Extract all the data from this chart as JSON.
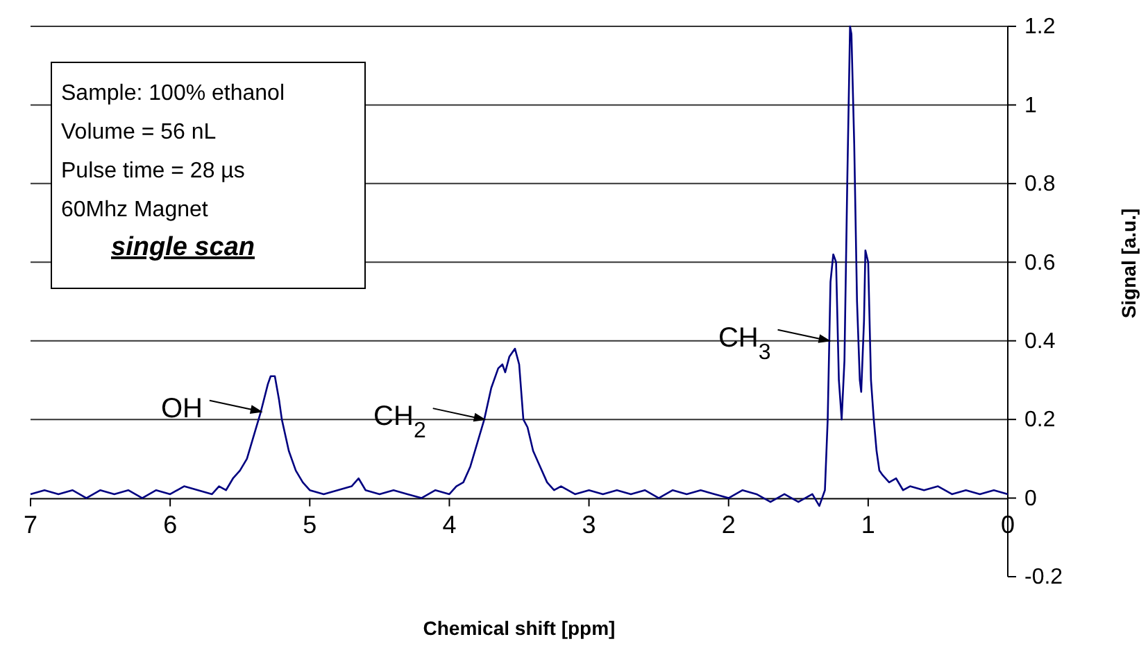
{
  "chart_data": {
    "type": "line",
    "xlabel": "Chemical shift [ppm]",
    "y2label": "Signal [a.u.]",
    "xlim": [
      7,
      0
    ],
    "xticks": [
      7,
      6,
      5,
      4,
      3,
      2,
      1,
      0
    ],
    "ylim": [
      -0.2,
      1.2
    ],
    "yticks": [
      -0.2,
      0,
      0.2,
      0.4,
      0.6,
      0.8,
      1,
      1.2
    ],
    "grid": "y",
    "marker": "none",
    "line_style": "solid",
    "series": [
      {
        "color": "#000080",
        "x": [
          7.0,
          6.9,
          6.8,
          6.7,
          6.6,
          6.5,
          6.4,
          6.3,
          6.2,
          6.1,
          6.0,
          5.9,
          5.8,
          5.7,
          5.65,
          5.6,
          5.55,
          5.5,
          5.45,
          5.4,
          5.35,
          5.3,
          5.28,
          5.25,
          5.22,
          5.2,
          5.15,
          5.1,
          5.05,
          5.0,
          4.9,
          4.8,
          4.7,
          4.65,
          4.6,
          4.5,
          4.4,
          4.3,
          4.2,
          4.1,
          4.0,
          3.95,
          3.9,
          3.85,
          3.8,
          3.75,
          3.7,
          3.65,
          3.62,
          3.6,
          3.57,
          3.53,
          3.5,
          3.47,
          3.44,
          3.4,
          3.35,
          3.3,
          3.25,
          3.2,
          3.1,
          3.0,
          2.9,
          2.8,
          2.7,
          2.6,
          2.5,
          2.4,
          2.3,
          2.2,
          2.1,
          2.0,
          1.9,
          1.8,
          1.7,
          1.6,
          1.5,
          1.4,
          1.35,
          1.31,
          1.29,
          1.27,
          1.25,
          1.23,
          1.21,
          1.19,
          1.17,
          1.15,
          1.13,
          1.12,
          1.1,
          1.08,
          1.06,
          1.05,
          1.03,
          1.02,
          1.0,
          0.98,
          0.96,
          0.94,
          0.92,
          0.9,
          0.85,
          0.8,
          0.75,
          0.7,
          0.6,
          0.5,
          0.4,
          0.3,
          0.2,
          0.1,
          0.0
        ],
        "values": [
          0.01,
          0.02,
          0.01,
          0.02,
          0.0,
          0.02,
          0.01,
          0.02,
          0.0,
          0.02,
          0.01,
          0.03,
          0.02,
          0.01,
          0.03,
          0.02,
          0.05,
          0.07,
          0.1,
          0.16,
          0.22,
          0.29,
          0.31,
          0.31,
          0.25,
          0.2,
          0.12,
          0.07,
          0.04,
          0.02,
          0.01,
          0.02,
          0.03,
          0.05,
          0.02,
          0.01,
          0.02,
          0.01,
          0.0,
          0.02,
          0.01,
          0.03,
          0.04,
          0.08,
          0.14,
          0.2,
          0.28,
          0.33,
          0.34,
          0.32,
          0.36,
          0.38,
          0.34,
          0.2,
          0.18,
          0.12,
          0.08,
          0.04,
          0.02,
          0.03,
          0.01,
          0.02,
          0.01,
          0.02,
          0.01,
          0.02,
          0.0,
          0.02,
          0.01,
          0.02,
          0.01,
          0.0,
          0.02,
          0.01,
          -0.01,
          0.01,
          -0.01,
          0.01,
          -0.02,
          0.02,
          0.2,
          0.55,
          0.62,
          0.6,
          0.3,
          0.2,
          0.35,
          0.8,
          1.2,
          1.18,
          0.9,
          0.5,
          0.3,
          0.27,
          0.45,
          0.63,
          0.6,
          0.3,
          0.2,
          0.12,
          0.07,
          0.06,
          0.04,
          0.05,
          0.02,
          0.03,
          0.02,
          0.03,
          0.01,
          0.02,
          0.01,
          0.02,
          0.01
        ]
      }
    ],
    "annotations": [
      {
        "text": "OH",
        "x": 5.35,
        "y": 0.22
      },
      {
        "text": "CH$_{2}$",
        "x": 3.75,
        "y": 0.2
      },
      {
        "text": "CH$_{3}$",
        "x": 1.28,
        "y": 0.4
      },
      "Sample: 100% ethanol",
      "Volume = 56 nL",
      "Pulse time = 28 µs",
      "60Mhz Magnet",
      "single scan"
    ]
  }
}
